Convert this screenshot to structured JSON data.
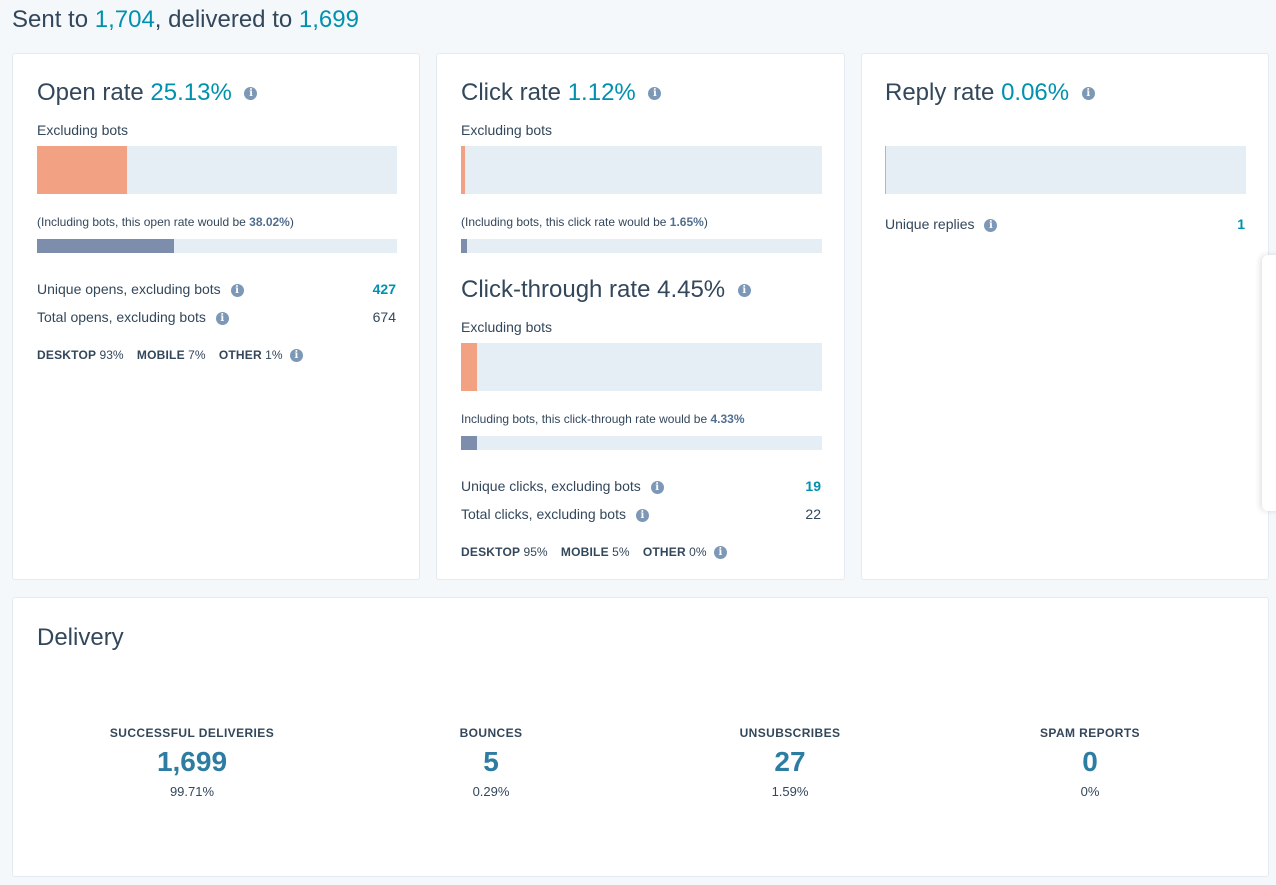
{
  "summary": {
    "sent_prefix": "Sent to ",
    "sent_count": "1,704",
    "delivered_prefix": ", delivered to ",
    "delivered_count": "1,699"
  },
  "open_card": {
    "title": "Open rate",
    "rate": "25.13%",
    "excluding_label": "Excluding bots",
    "excluding_fill": 0.2513,
    "including_prefix": "(Including bots, this open rate would be ",
    "including_rate": "38.02%",
    "including_suffix": ")",
    "including_fill": 0.3802,
    "rows": [
      {
        "label": "Unique opens, excluding bots",
        "value": "427"
      },
      {
        "label": "Total opens, excluding bots",
        "value": "674"
      }
    ],
    "devices": [
      {
        "name": "DESKTOP",
        "pct": "93%"
      },
      {
        "name": "MOBILE",
        "pct": "7%"
      },
      {
        "name": "OTHER",
        "pct": "1%"
      }
    ]
  },
  "click_card": {
    "title": "Click rate",
    "rate": "1.12%",
    "excluding_label": "Excluding bots",
    "excluding_fill": 0.0112,
    "including_prefix": "(Including bots, this click rate would be ",
    "including_rate": "1.65%",
    "including_suffix": ")",
    "including_fill": 0.0165,
    "ctr_title": "Click-through rate",
    "ctr_rate": "4.45%",
    "ctr_excluding_label": "Excluding bots",
    "ctr_excluding_fill": 0.0445,
    "ctr_including_prefix": "Including bots, this click-through rate would be ",
    "ctr_including_rate": "4.33%",
    "ctr_including_fill": 0.0433,
    "rows": [
      {
        "label": "Unique clicks, excluding bots",
        "value": "19"
      },
      {
        "label": "Total clicks, excluding bots",
        "value": "22"
      }
    ],
    "devices": [
      {
        "name": "DESKTOP",
        "pct": "95%"
      },
      {
        "name": "MOBILE",
        "pct": "5%"
      },
      {
        "name": "OTHER",
        "pct": "0%"
      }
    ]
  },
  "reply_card": {
    "title": "Reply rate",
    "rate": "0.06%",
    "fill": 0.0006,
    "row_label": "Unique replies",
    "row_value": "1"
  },
  "delivery": {
    "title": "Delivery",
    "stats": [
      {
        "label": "SUCCESSFUL DELIVERIES",
        "value": "1,699",
        "pct": "99.71%"
      },
      {
        "label": "BOUNCES",
        "value": "5",
        "pct": "0.29%"
      },
      {
        "label": "UNSUBSCRIBES",
        "value": "27",
        "pct": "1.59%"
      },
      {
        "label": "SPAM REPORTS",
        "value": "0",
        "pct": "0%"
      }
    ]
  },
  "colors": {
    "accent": "#0091ae",
    "bar_orange": "#f2a283",
    "bar_slate": "#7c8eac",
    "bar_bg": "#e5edf5",
    "text": "#33475b"
  },
  "icons": {
    "info": "info-circle-icon"
  }
}
